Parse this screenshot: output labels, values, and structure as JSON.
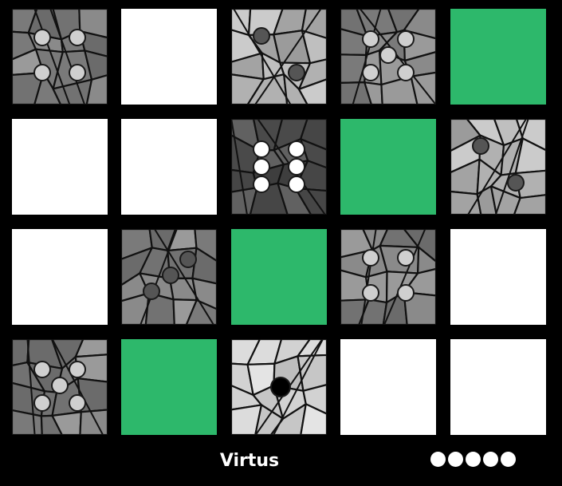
{
  "game": {
    "title": "Virtus",
    "lives_total": 5,
    "lives_remaining": 5
  },
  "colors": {
    "background": "#000000",
    "blank_tile": "#ffffff",
    "green_tile": "#2db86b",
    "stone_dark": "#5a5a5a",
    "stone_light": "#c9c9c9",
    "pip_light": "#cfcfcf",
    "pip_dark": "#555555",
    "pip_white": "#ffffff",
    "pip_black": "#000000"
  },
  "board": {
    "rows": 4,
    "cols": 5,
    "tiles": [
      {
        "kind": "stone",
        "shade": "mid",
        "pips": 4,
        "pip_color": "light"
      },
      {
        "kind": "blank"
      },
      {
        "kind": "stone",
        "shade": "light",
        "pips": 2,
        "pip_color": "dark"
      },
      {
        "kind": "stone",
        "shade": "mid",
        "pips": 5,
        "pip_color": "light"
      },
      {
        "kind": "green"
      },
      {
        "kind": "blank"
      },
      {
        "kind": "blank"
      },
      {
        "kind": "stone",
        "shade": "dark",
        "pips": 6,
        "pip_color": "white"
      },
      {
        "kind": "green"
      },
      {
        "kind": "stone",
        "shade": "light",
        "pips": 2,
        "pip_color": "dark"
      },
      {
        "kind": "blank"
      },
      {
        "kind": "stone",
        "shade": "mid",
        "pips": 3,
        "pip_color": "dark"
      },
      {
        "kind": "green"
      },
      {
        "kind": "stone",
        "shade": "mid",
        "pips": 4,
        "pip_color": "light"
      },
      {
        "kind": "blank"
      },
      {
        "kind": "stone",
        "shade": "mid",
        "pips": 5,
        "pip_color": "light"
      },
      {
        "kind": "green"
      },
      {
        "kind": "stone",
        "shade": "pale",
        "pips": 1,
        "pip_color": "black"
      },
      {
        "kind": "blank"
      },
      {
        "kind": "blank"
      }
    ]
  }
}
